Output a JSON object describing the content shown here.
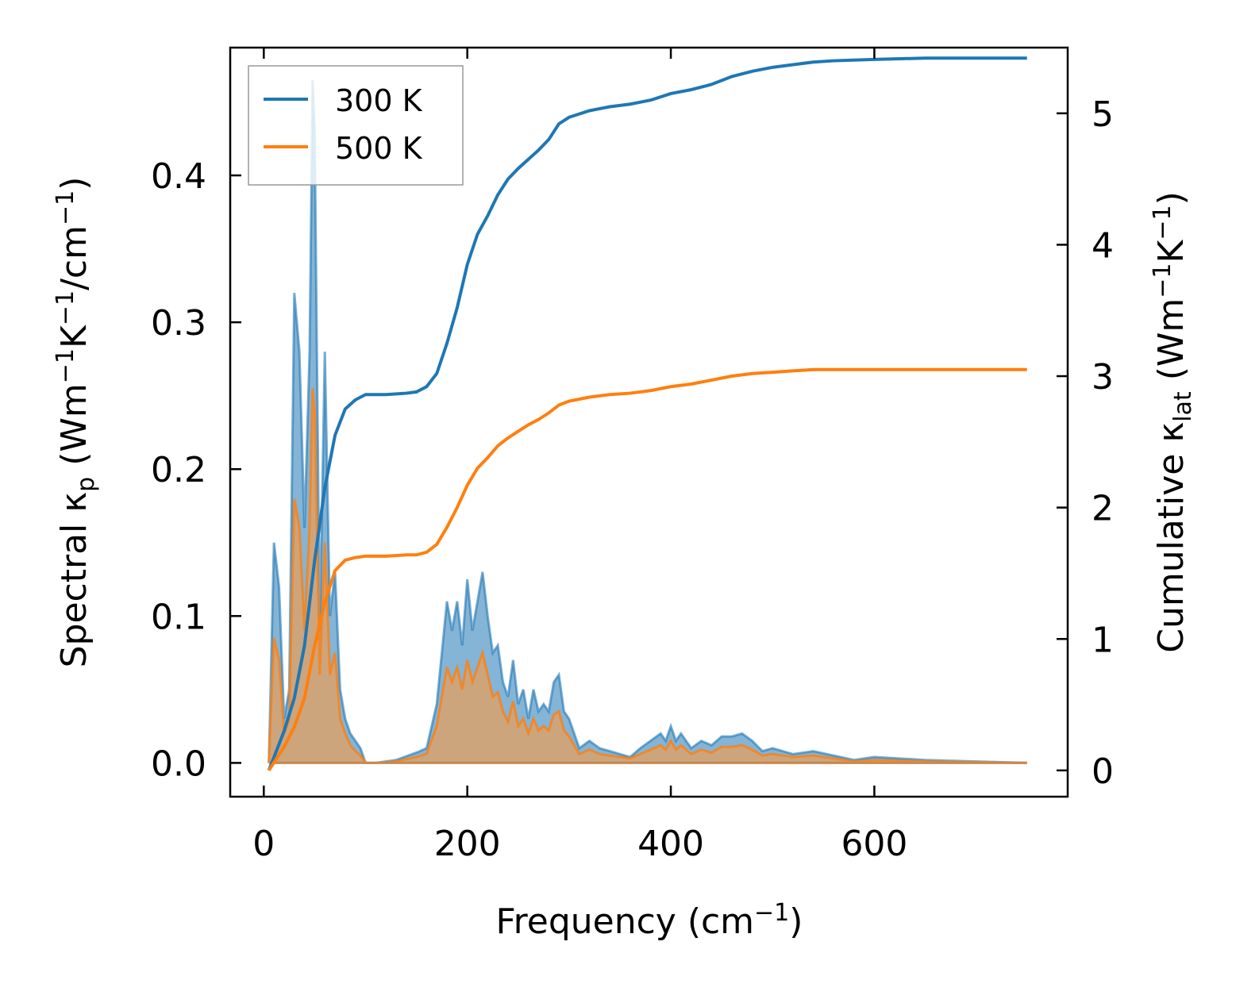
{
  "chart_data": {
    "type": "area+line (dual y-axis)",
    "xlabel": "Frequency (cm",
    "xlabel_sup": "−1",
    "xlabel_end": ")",
    "ylabel_left": "Spectral κ",
    "ylabel_left_sub": "p",
    "ylabel_left_rest": " (Wm",
    "ylabel_left_sup1": "−1",
    "ylabel_left_mid": "K",
    "ylabel_left_sup2": "−1",
    "ylabel_left_mid2": "/cm",
    "ylabel_left_sup3": "−1",
    "ylabel_left_end": ")",
    "ylabel_right": "Cumulative κ",
    "ylabel_right_sub": "lat",
    "ylabel_right_rest": " (Wm",
    "ylabel_right_sup1": "−1",
    "ylabel_right_mid": "K",
    "ylabel_right_sup2": "−1",
    "ylabel_right_end": ")",
    "xlim": [
      -33,
      790
    ],
    "ylim_left": [
      -0.023,
      0.487
    ],
    "ylim_right": [
      -0.2,
      5.5
    ],
    "xticks": [
      0,
      200,
      400,
      600
    ],
    "xtick_labels": [
      "0",
      "200",
      "400",
      "600"
    ],
    "yticks_left": [
      0.0,
      0.1,
      0.2,
      0.3,
      0.4
    ],
    "ytick_labels_left": [
      "0.0",
      "0.1",
      "0.2",
      "0.3",
      "0.4"
    ],
    "yticks_right": [
      0,
      1,
      2,
      3,
      4,
      5
    ],
    "ytick_labels_right": [
      "0",
      "1",
      "2",
      "3",
      "4",
      "5"
    ],
    "legend": {
      "placement": "top-left",
      "entries": [
        "300 K",
        "500 K"
      ]
    },
    "colors": {
      "s300": "#1f77b4",
      "s500": "#ff7f0e",
      "fill300": "#1f77b4",
      "fill500": "#d4a373"
    },
    "spectral": {
      "x": [
        5,
        10,
        15,
        20,
        25,
        30,
        35,
        40,
        45,
        48,
        50,
        55,
        60,
        65,
        70,
        75,
        80,
        85,
        90,
        95,
        100,
        110,
        130,
        150,
        160,
        170,
        180,
        185,
        190,
        195,
        200,
        205,
        210,
        215,
        220,
        225,
        230,
        235,
        240,
        245,
        250,
        255,
        260,
        265,
        270,
        275,
        280,
        285,
        290,
        295,
        300,
        310,
        320,
        330,
        340,
        350,
        360,
        370,
        380,
        390,
        395,
        400,
        405,
        410,
        420,
        430,
        440,
        450,
        460,
        470,
        480,
        490,
        500,
        520,
        540,
        560,
        580,
        600,
        650,
        700,
        750
      ],
      "s300": [
        0.0,
        0.15,
        0.12,
        0.03,
        0.05,
        0.32,
        0.28,
        0.16,
        0.28,
        0.465,
        0.43,
        0.09,
        0.28,
        0.1,
        0.13,
        0.05,
        0.03,
        0.02,
        0.015,
        0.01,
        0.0,
        0.0,
        0.002,
        0.007,
        0.01,
        0.04,
        0.11,
        0.09,
        0.11,
        0.08,
        0.125,
        0.09,
        0.11,
        0.13,
        0.1,
        0.075,
        0.08,
        0.055,
        0.045,
        0.07,
        0.04,
        0.05,
        0.03,
        0.05,
        0.035,
        0.04,
        0.035,
        0.055,
        0.06,
        0.035,
        0.03,
        0.01,
        0.015,
        0.01,
        0.008,
        0.006,
        0.004,
        0.01,
        0.015,
        0.02,
        0.015,
        0.025,
        0.015,
        0.02,
        0.01,
        0.015,
        0.012,
        0.018,
        0.018,
        0.02,
        0.015,
        0.008,
        0.01,
        0.006,
        0.008,
        0.005,
        0.002,
        0.004,
        0.002,
        0.001,
        0.0
      ],
      "s500": [
        0.0,
        0.085,
        0.07,
        0.02,
        0.03,
        0.18,
        0.16,
        0.09,
        0.16,
        0.255,
        0.24,
        0.06,
        0.15,
        0.06,
        0.075,
        0.03,
        0.02,
        0.012,
        0.008,
        0.005,
        0.0,
        0.0,
        0.001,
        0.004,
        0.006,
        0.025,
        0.065,
        0.055,
        0.065,
        0.05,
        0.07,
        0.055,
        0.065,
        0.075,
        0.06,
        0.045,
        0.048,
        0.035,
        0.028,
        0.042,
        0.025,
        0.03,
        0.02,
        0.03,
        0.022,
        0.025,
        0.022,
        0.033,
        0.035,
        0.022,
        0.018,
        0.006,
        0.009,
        0.006,
        0.005,
        0.004,
        0.003,
        0.006,
        0.009,
        0.012,
        0.009,
        0.015,
        0.009,
        0.012,
        0.006,
        0.009,
        0.007,
        0.011,
        0.011,
        0.012,
        0.009,
        0.005,
        0.006,
        0.004,
        0.005,
        0.003,
        0.001,
        0.002,
        0.001,
        0.0005,
        0.0
      ]
    },
    "cumulative": {
      "x": [
        5,
        20,
        30,
        40,
        50,
        60,
        70,
        80,
        90,
        100,
        120,
        140,
        150,
        160,
        170,
        180,
        190,
        200,
        210,
        220,
        230,
        240,
        250,
        260,
        270,
        280,
        290,
        300,
        320,
        340,
        360,
        380,
        400,
        420,
        440,
        460,
        480,
        500,
        520,
        540,
        560,
        600,
        650,
        700,
        750
      ],
      "c300": [
        0.0,
        0.3,
        0.55,
        0.95,
        1.6,
        2.15,
        2.55,
        2.75,
        2.82,
        2.86,
        2.86,
        2.87,
        2.88,
        2.92,
        3.02,
        3.25,
        3.52,
        3.85,
        4.08,
        4.22,
        4.38,
        4.5,
        4.58,
        4.65,
        4.72,
        4.8,
        4.92,
        4.97,
        5.02,
        5.05,
        5.07,
        5.1,
        5.15,
        5.18,
        5.22,
        5.28,
        5.32,
        5.35,
        5.37,
        5.39,
        5.4,
        5.41,
        5.42,
        5.42,
        5.42
      ],
      "c500": [
        0.0,
        0.18,
        0.33,
        0.55,
        0.95,
        1.28,
        1.52,
        1.6,
        1.62,
        1.63,
        1.63,
        1.64,
        1.64,
        1.66,
        1.72,
        1.85,
        2.0,
        2.17,
        2.3,
        2.38,
        2.47,
        2.53,
        2.58,
        2.63,
        2.67,
        2.72,
        2.78,
        2.81,
        2.84,
        2.86,
        2.87,
        2.89,
        2.92,
        2.94,
        2.97,
        3.0,
        3.02,
        3.03,
        3.04,
        3.05,
        3.05,
        3.05,
        3.05,
        3.05,
        3.05
      ]
    }
  }
}
